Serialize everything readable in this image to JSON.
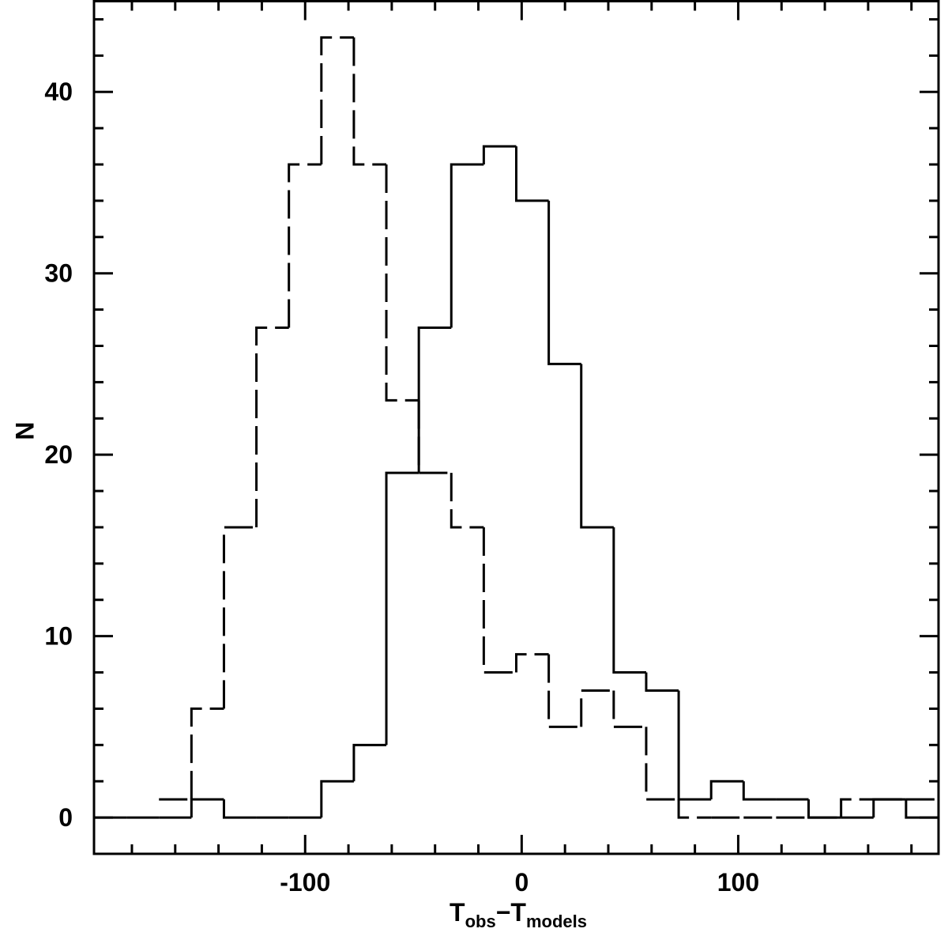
{
  "chart_data": {
    "type": "histogram",
    "xlabel": [
      "T",
      "obs",
      "−T",
      "models"
    ],
    "ylabel": "N",
    "bins": [
      -197.5,
      -182.5,
      -167.5,
      -152.5,
      -137.5,
      -122.5,
      -107.5,
      -92.5,
      -77.5,
      -62.5,
      -47.5,
      -32.5,
      -17.5,
      -2.5,
      12.5,
      27.5,
      42.5,
      57.5,
      72.5,
      87.5,
      102.5,
      117.5,
      132.5,
      147.5,
      162.5,
      177.5,
      192.5
    ],
    "series": [
      {
        "color": "#000000",
        "dashed": false,
        "values": [
          0,
          0,
          0,
          1,
          0,
          0,
          0,
          2,
          4,
          19,
          27,
          36,
          37,
          34,
          25,
          16,
          8,
          7,
          1,
          2,
          1,
          1,
          0,
          0,
          1,
          0
        ]
      },
      {
        "color": "#000000",
        "dashed": true,
        "values": [
          null,
          null,
          1,
          6,
          16,
          27,
          36,
          43,
          36,
          23,
          19,
          16,
          8,
          9,
          5,
          7,
          5,
          1,
          0,
          0,
          0,
          0,
          0,
          1,
          1,
          1
        ]
      }
    ],
    "xlim": [
      -197.5,
      192.5
    ],
    "ylim": [
      -2,
      45
    ],
    "xticks": [
      -100,
      0,
      100
    ],
    "yticks": [
      0,
      10,
      20,
      30,
      40
    ],
    "xminorticks": [
      -180,
      -160,
      -140,
      -120,
      -80,
      -60,
      -40,
      -20,
      20,
      40,
      60,
      80,
      120,
      140,
      160,
      180
    ],
    "yminorticks": [
      2,
      4,
      6,
      8,
      12,
      14,
      16,
      18,
      22,
      24,
      26,
      28,
      32,
      34,
      36,
      38,
      42,
      44
    ]
  }
}
